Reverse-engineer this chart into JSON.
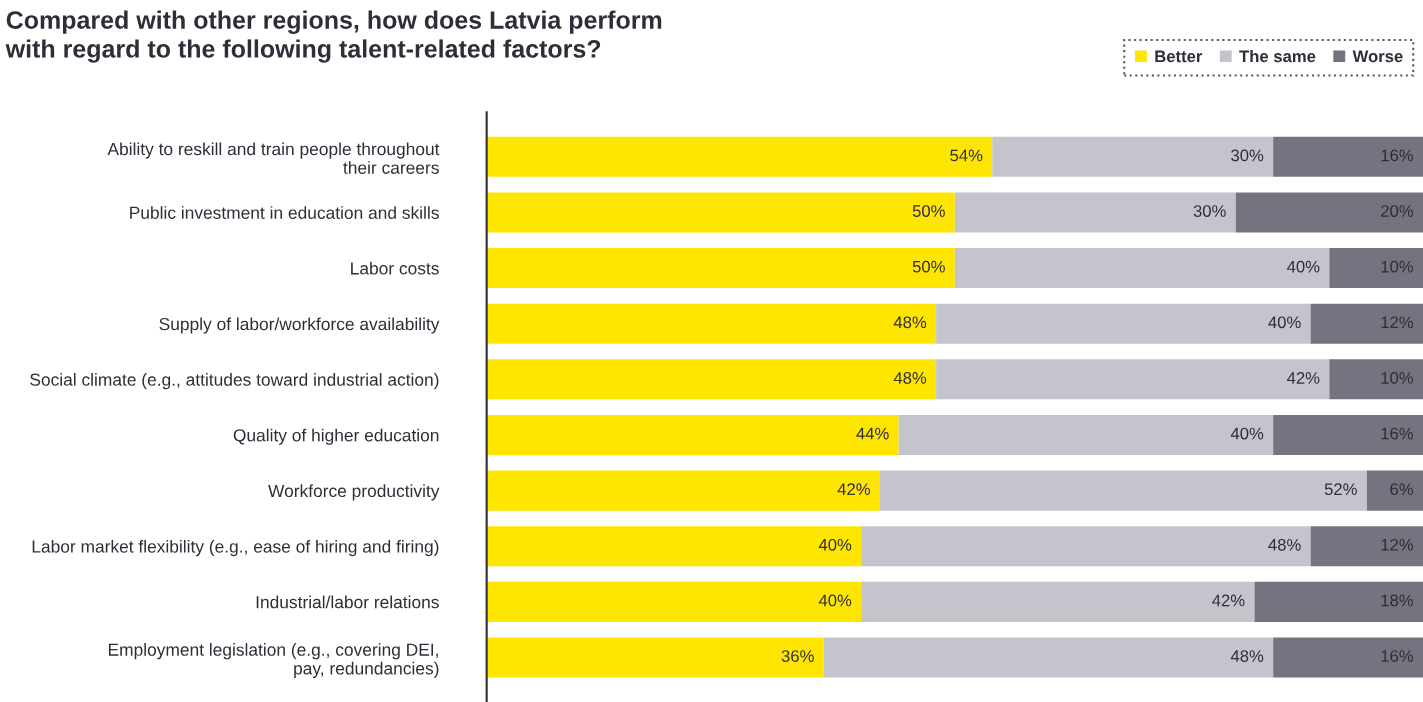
{
  "chart_data": {
    "type": "bar",
    "orientation": "horizontal",
    "stacked": true,
    "title": "Compared with other regions, how does Latvia perform\nwith regard to the following talent-related factors?",
    "categories": [
      "Ability to reskill and train people throughout\ntheir careers",
      "Public investment in education and skills",
      "Labor costs",
      "Supply of labor/workforce availability",
      "Social climate (e.g., attitudes toward industrial action)",
      "Quality of higher education",
      "Workforce productivity",
      "Labor market flexibility (e.g., ease of hiring and firing)",
      "Industrial/labor relations",
      "Employment legislation (e.g., covering DEI,\npay, redundancies)"
    ],
    "series": [
      {
        "name": "Better",
        "color": "#ffe600",
        "values": [
          54,
          50,
          50,
          48,
          48,
          44,
          42,
          40,
          40,
          36
        ],
        "value_labels": [
          "54%",
          "50%",
          "50%",
          "48%",
          "48%",
          "44%",
          "42%",
          "40%",
          "40%",
          "36%"
        ]
      },
      {
        "name": "The same",
        "color": "#c4c4cd",
        "values": [
          30,
          30,
          40,
          40,
          42,
          40,
          52,
          48,
          42,
          48
        ],
        "value_labels": [
          "30%",
          "30%",
          "40%",
          "40%",
          "42%",
          "40%",
          "52%",
          "48%",
          "42%",
          "48%"
        ]
      },
      {
        "name": "Worse",
        "color": "#747480",
        "values": [
          16,
          20,
          10,
          12,
          10,
          16,
          6,
          12,
          18,
          16
        ],
        "value_labels": [
          "16%",
          "20%",
          "10%",
          "12%",
          "10%",
          "16%",
          "6%",
          "12%",
          "18%",
          "16%"
        ]
      }
    ],
    "xlim": [
      0,
      100
    ],
    "tick_labels": "y",
    "grid": false,
    "legend": "top right"
  }
}
